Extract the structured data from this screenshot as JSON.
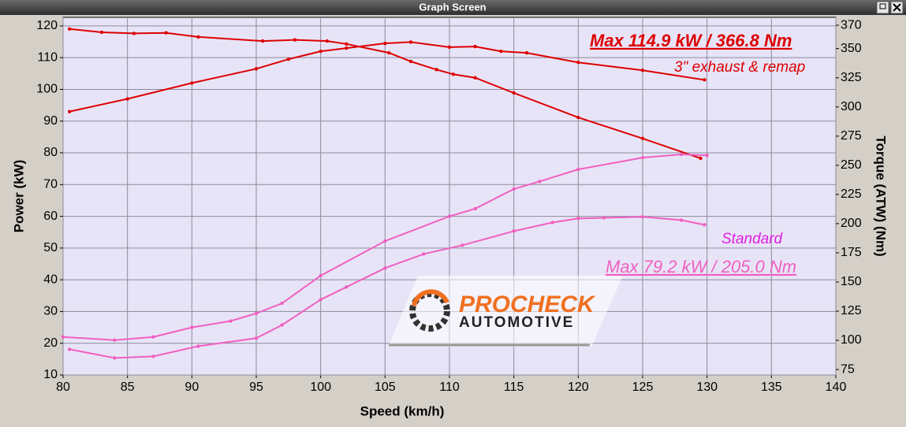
{
  "window_title": "Graph Screen",
  "logo": {
    "line1": "PROCHECK",
    "line2": "AUTOMOTIVE"
  },
  "chart_data": {
    "type": "line",
    "x_label": "Speed (km/h)",
    "y_label": "Power (kW)",
    "y2_label": "Torque (ATW) (Nm)",
    "xlim": [
      80,
      140
    ],
    "xticks": [
      80,
      85,
      90,
      95,
      100,
      105,
      110,
      115,
      120,
      125,
      130,
      135,
      140
    ],
    "ylim": [
      10,
      122.7
    ],
    "yticks": [
      10,
      20,
      30,
      40,
      50,
      60,
      70,
      80,
      90,
      100,
      110,
      120
    ],
    "y2lim": [
      70.3,
      376.8
    ],
    "y2ticks": [
      75,
      100,
      125,
      150,
      175,
      200,
      225,
      250,
      275,
      300,
      325,
      350,
      370
    ],
    "grid": true,
    "background": "#e8e4f8",
    "series": [
      {
        "name": "3\" exhaust & remap power",
        "color": "#dd0000",
        "x": [
          80.5,
          85,
          90,
          95,
          97.5,
          100,
          102,
          105,
          107,
          110,
          112,
          114,
          116,
          120,
          125,
          129.8
        ],
        "values": [
          93,
          97,
          102,
          106.5,
          109.5,
          112,
          113,
          114.5,
          114.9,
          113.3,
          113.5,
          112,
          111.5,
          108.5,
          106,
          103
        ]
      },
      {
        "name": "3\" exhaust & remap torque",
        "color": "#dd0000",
        "axis": "y2",
        "x": [
          80.5,
          83,
          85.5,
          88,
          90.5,
          95.5,
          98,
          100.5,
          102,
          105.3,
          107,
          109,
          110.3,
          112,
          115,
          120,
          125,
          129.5
        ],
        "values": [
          366.8,
          364,
          363,
          363.5,
          360,
          356.5,
          357.5,
          356.5,
          354,
          346.4,
          339,
          332,
          328,
          325,
          312,
          291,
          273,
          256
        ]
      },
      {
        "name": "Standard power",
        "color": "#f060c0",
        "x": [
          80,
          84,
          87,
          90,
          93,
          95,
          97,
          100,
          105,
          110,
          112,
          115,
          117,
          120,
          125,
          128,
          130
        ],
        "values": [
          22,
          21,
          22,
          25,
          27,
          29.4,
          32.6,
          41.3,
          52.2,
          60,
          62.4,
          68.6,
          71,
          74.8,
          78.5,
          79.5,
          79.2
        ]
      },
      {
        "name": "Standard torque",
        "color": "#f060c0",
        "axis": "y2",
        "x": [
          80.5,
          84,
          87,
          90.5,
          95,
          97,
          100,
          102,
          105,
          108,
          111,
          115,
          118,
          120,
          122,
          125,
          128,
          129.8
        ],
        "values": [
          92.3,
          84.9,
          86.2,
          95,
          101.8,
          113.2,
          134.9,
          145.7,
          161.9,
          174,
          181.5,
          193.6,
          201,
          204.5,
          205,
          205.8,
          203,
          199
        ]
      }
    ],
    "annotations": [
      {
        "text": "Max 114.9 kW  / 366.8 Nm",
        "color": "#dd0000"
      },
      {
        "text": "3\" exhaust & remap",
        "color": "#dd0000"
      },
      {
        "text": "Standard",
        "color": "#e020e0"
      },
      {
        "text": "Max 79.2 kW  / 205.0 Nm",
        "color": "#f060c0"
      }
    ]
  }
}
